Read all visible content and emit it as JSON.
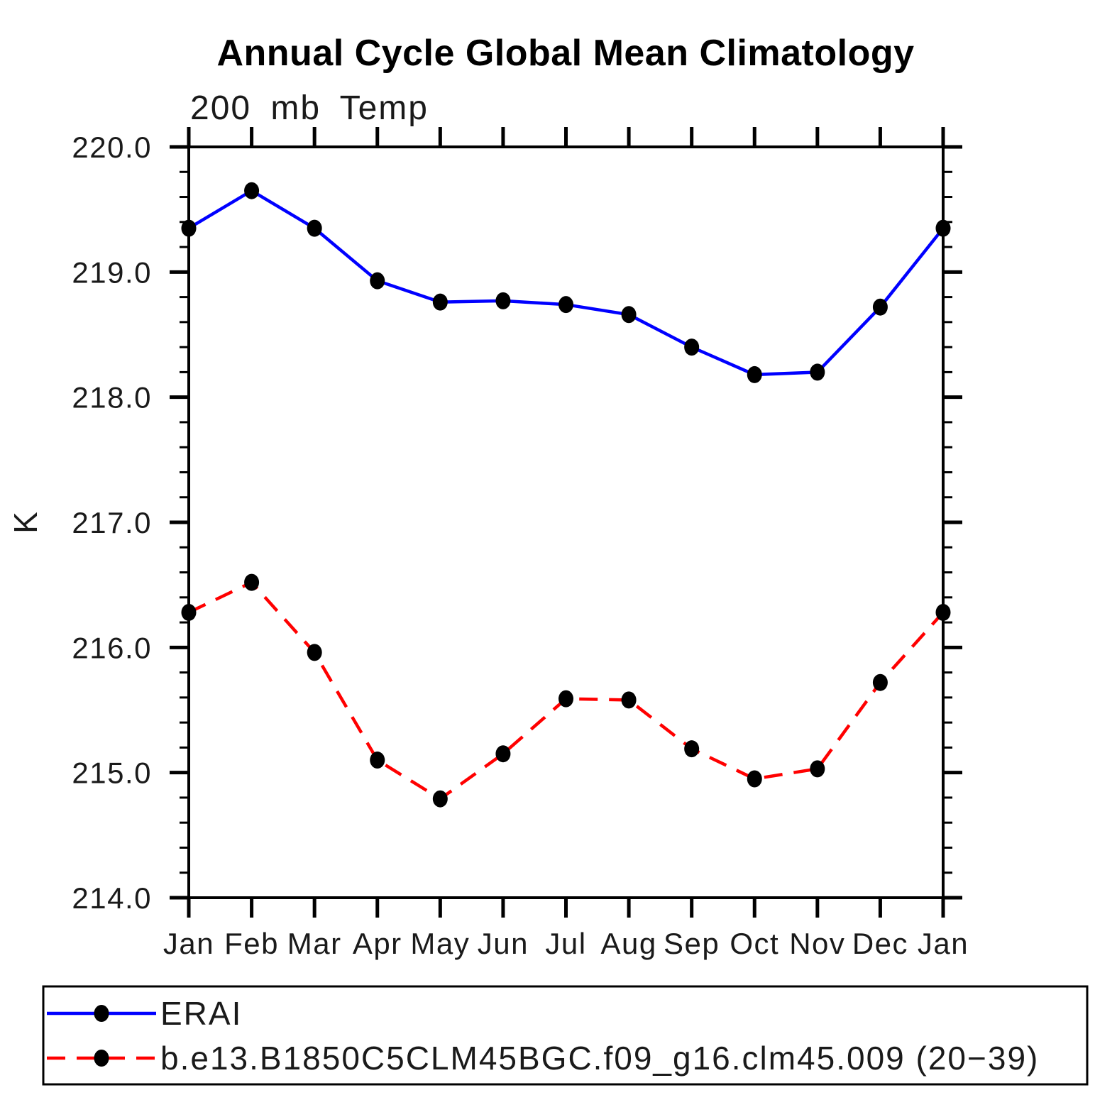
{
  "page": {
    "background": "#ffffff"
  },
  "chart_data": {
    "type": "line",
    "title": "Annual Cycle Global Mean Climatology",
    "subtitle": "200 mb Temp",
    "ylabel": "K",
    "xlabel": "",
    "categories": [
      "Jan",
      "Feb",
      "Mar",
      "Apr",
      "May",
      "Jun",
      "Jul",
      "Aug",
      "Sep",
      "Oct",
      "Nov",
      "Dec",
      "Jan"
    ],
    "ylim": [
      214.0,
      220.0
    ],
    "ytick_major": 1.0,
    "ytick_minor": 0.2,
    "ytick_labels": [
      "214.0",
      "215.0",
      "216.0",
      "217.0",
      "218.0",
      "219.0",
      "220.0"
    ],
    "grid": false,
    "frame": true,
    "axis_color": "#000000",
    "marker_color": "#000000",
    "legend_position": "bottom-left-box",
    "series": [
      {
        "name": "ERAI",
        "color": "#0000ff",
        "style": "solid",
        "marker": "filled-circle",
        "values": [
          219.35,
          219.65,
          219.35,
          218.93,
          218.76,
          218.77,
          218.74,
          218.66,
          218.4,
          218.18,
          218.2,
          218.72,
          219.35
        ]
      },
      {
        "name": "b.e13.B1850C5CLM45BGC.f09_g16.clm45.009 (20−39)",
        "color": "#ff0000",
        "style": "dashed",
        "marker": "filled-circle",
        "values": [
          216.28,
          216.52,
          215.96,
          215.1,
          214.79,
          215.15,
          215.59,
          215.58,
          215.19,
          214.95,
          215.03,
          215.72,
          216.28
        ]
      }
    ]
  }
}
